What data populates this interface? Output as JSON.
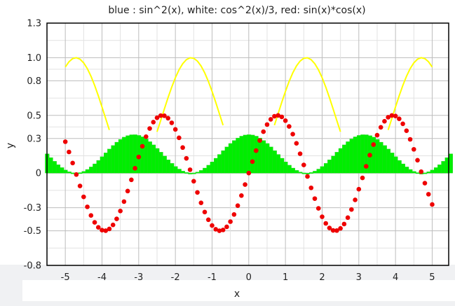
{
  "chart_data": {
    "type": "line",
    "title": "blue : sin^2(x), white: cos^2(x)/3, red: sin(x)*cos(x)",
    "xlabel": "x",
    "ylabel": "y",
    "xlim": [
      -5.5,
      5.45
    ],
    "ylim": [
      -0.8,
      1.3
    ],
    "grid": true,
    "x_ticks": [
      -5,
      -4,
      -3,
      -2,
      -1,
      0,
      1,
      2,
      3,
      4,
      5
    ],
    "x_tick_labels": [
      "-5",
      "-4",
      "-3",
      "-2",
      "-1",
      "0",
      "1",
      "2",
      "3",
      "4",
      "5"
    ],
    "y_ticks": [
      1.3,
      1.0,
      0.8,
      0.5,
      0.3,
      0,
      -0.3,
      -0.5,
      -0.8
    ],
    "y_tick_labels": [
      "1.3",
      "1.0",
      "0.8",
      "0.5",
      "0.3",
      "0",
      "-0.3",
      "-0.5",
      "-0.8"
    ],
    "series": [
      {
        "function": "sin(x)^2",
        "style": "line",
        "color": "#ffff00",
        "x_range": [
          -5,
          5
        ],
        "step": 0.1,
        "clip_below": 0.33
      },
      {
        "function": "cos(x)^2/3",
        "style": "bar-area",
        "color": "#00ee00",
        "x_range": [
          -5.5,
          5.5
        ],
        "step": 0.1
      },
      {
        "function": "sin(x)*cos(x)",
        "style": "scatter",
        "color": "#ee0000",
        "x_range": [
          -5,
          5
        ],
        "step": 0.1
      }
    ]
  }
}
